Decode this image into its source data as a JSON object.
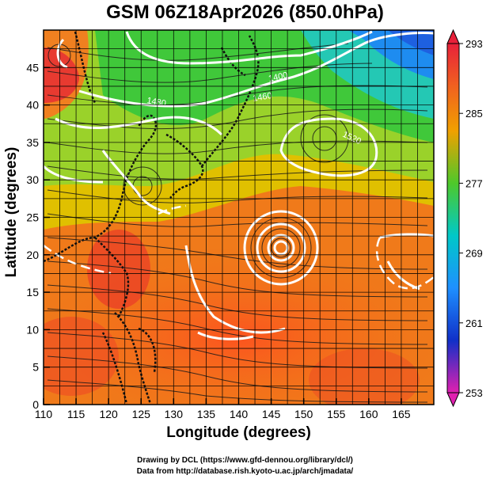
{
  "title": "GSM 06Z18Apr2026 (850.0hPa)",
  "x_label": "Longitude (degrees)",
  "y_label": "Latitude  (degrees)",
  "x_ticks": [
    "110",
    "115",
    "120",
    "125",
    "130",
    "135",
    "140",
    "145",
    "150",
    "155",
    "160",
    "165"
  ],
  "y_ticks": [
    "0",
    "5",
    "10",
    "15",
    "20",
    "25",
    "30",
    "35",
    "40",
    "45"
  ],
  "colorbar": {
    "ticks": [
      "293",
      "285",
      "277",
      "269",
      "261",
      "253"
    ],
    "colors": [
      "#e8213a",
      "#f08020",
      "#ffd700",
      "#7ed83a",
      "#00c8c8",
      "#1e90ff",
      "#1030c8",
      "#c0209c"
    ]
  },
  "contour_labels": [
    "1400",
    "1460",
    "1520",
    "1480"
  ],
  "credits": {
    "line1": "Drawing by DCL (https://www.gfd-dennou.org/library/dcl/)",
    "line2": "Data from http://database.rish.kyoto-u.ac.jp/arch/jmadata/"
  },
  "chart_data": {
    "type": "heatmap",
    "title": "GSM 06Z18Apr2026 (850.0hPa)",
    "xlabel": "Longitude (degrees)",
    "ylabel": "Latitude  (degrees)",
    "xlim": [
      110,
      170
    ],
    "ylim": [
      0,
      50
    ],
    "colorbar_range": [
      253,
      293
    ],
    "contour_label_values": [
      1400,
      1460,
      1520,
      1480
    ],
    "grid": true
  }
}
